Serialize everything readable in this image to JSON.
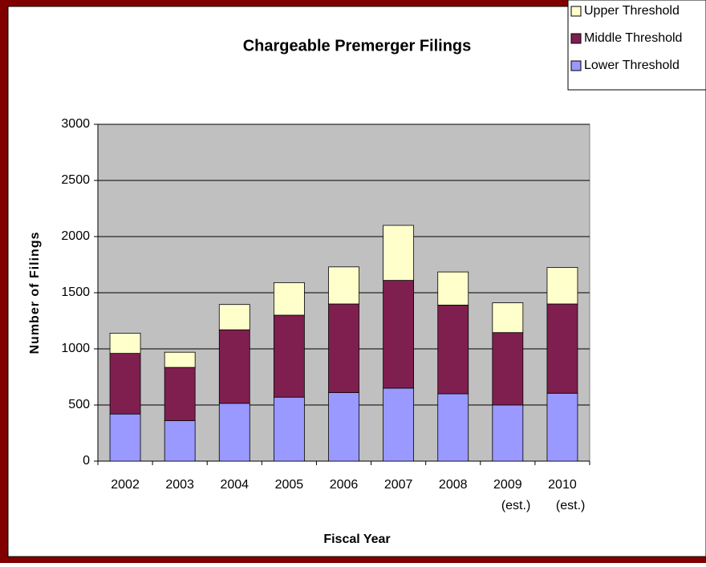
{
  "chart_data": {
    "type": "stacked_bar",
    "title": "Chargeable Premerger Filings",
    "x_label": "Fiscal Year",
    "y_label": "Number of Filings",
    "categories": [
      "2002",
      "2003",
      "2004",
      "2005",
      "2006",
      "2007",
      "2008",
      "2009 (est.)",
      "2010 (est.)"
    ],
    "series": [
      {
        "name": "Lower Threshold",
        "color": "#9999ff",
        "values": [
          420,
          360,
          515,
          570,
          610,
          650,
          600,
          500,
          605
        ]
      },
      {
        "name": "Middle Threshold",
        "color": "#7f1f4f",
        "values": [
          540,
          475,
          655,
          730,
          790,
          960,
          790,
          645,
          795
        ]
      },
      {
        "name": "Upper Threshold",
        "color": "#ffffcc",
        "values": [
          180,
          135,
          225,
          290,
          330,
          490,
          295,
          265,
          325
        ]
      }
    ],
    "ylim": [
      0,
      3000
    ],
    "yticks": [
      0,
      500,
      1000,
      1500,
      2000,
      2500,
      3000
    ],
    "grid": true,
    "legend": "top-right"
  }
}
